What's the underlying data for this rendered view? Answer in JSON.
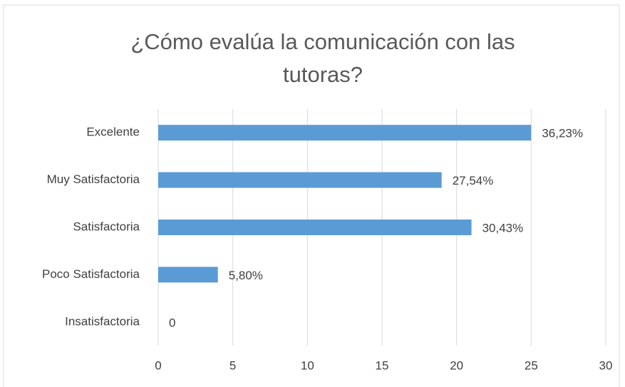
{
  "chart_data": {
    "type": "bar",
    "orientation": "horizontal",
    "title": "¿Cómo evalúa la comunicación con las tutoras?",
    "categories": [
      "Excelente",
      "Muy Satisfactoria",
      "Satisfactoria",
      "Poco Satisfactoria",
      "Insatisfactoria"
    ],
    "values": [
      25,
      19,
      21,
      4,
      0
    ],
    "data_labels": [
      "36,23%",
      "27,54%",
      "30,43%",
      "5,80%",
      "0"
    ],
    "color": "#5b9bd5",
    "xlim": [
      0,
      30
    ],
    "xticks": [
      0,
      5,
      10,
      15,
      20,
      25,
      30
    ],
    "grid": true
  }
}
